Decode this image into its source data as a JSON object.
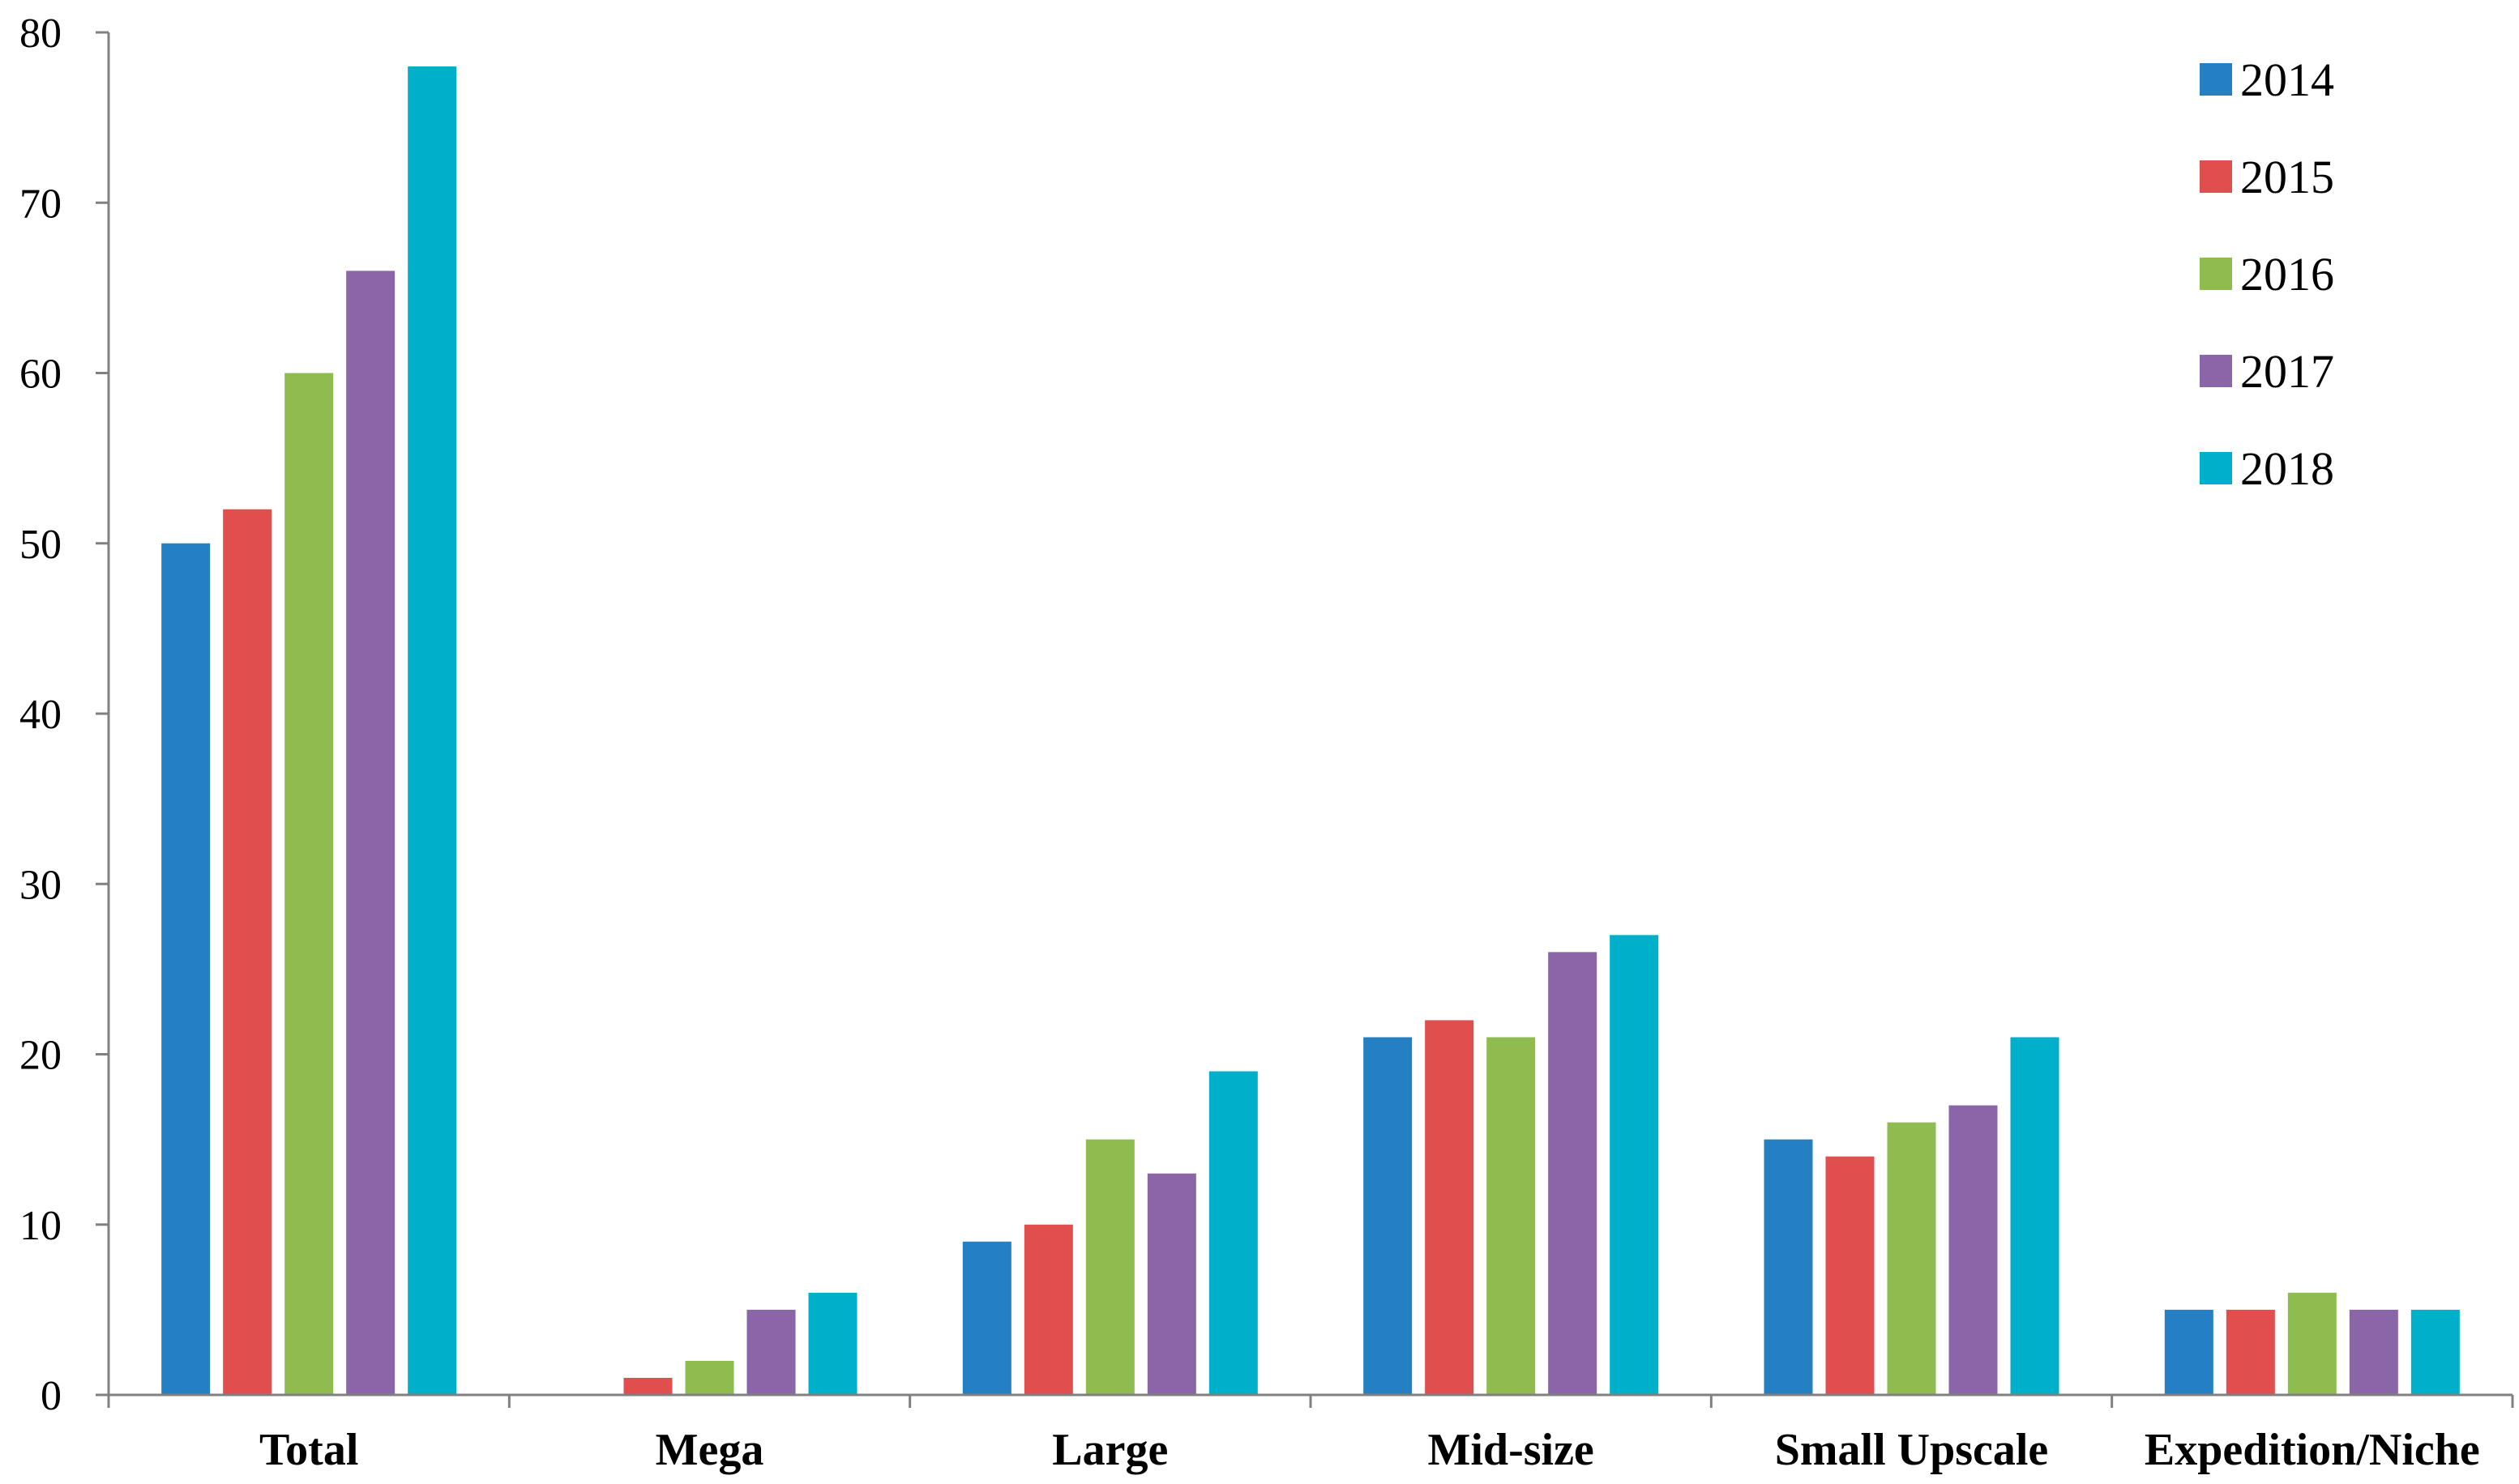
{
  "chart_data": {
    "type": "bar",
    "categories": [
      "Total",
      "Mega",
      "Large",
      "Mid-size",
      "Small Upscale",
      "Expedition/Niche"
    ],
    "series": [
      {
        "name": "2014",
        "color": "#2580C3",
        "values": [
          50,
          0,
          9,
          21,
          15,
          5
        ]
      },
      {
        "name": "2015",
        "color": "#E04E4E",
        "values": [
          52,
          1,
          10,
          22,
          14,
          5
        ]
      },
      {
        "name": "2016",
        "color": "#8FBC4F",
        "values": [
          60,
          2,
          15,
          21,
          16,
          6
        ]
      },
      {
        "name": "2017",
        "color": "#8A66A8",
        "values": [
          66,
          5,
          13,
          26,
          17,
          5
        ]
      },
      {
        "name": "2018",
        "color": "#00AFC9",
        "values": [
          78,
          6,
          19,
          27,
          21,
          5
        ]
      }
    ],
    "yticks": [
      "0",
      "10",
      "20",
      "30",
      "40",
      "50",
      "60",
      "70",
      "80"
    ],
    "ylim": [
      0,
      80
    ],
    "xlabel": "",
    "ylabel": "",
    "grid": false,
    "legend_position": "top-right"
  }
}
